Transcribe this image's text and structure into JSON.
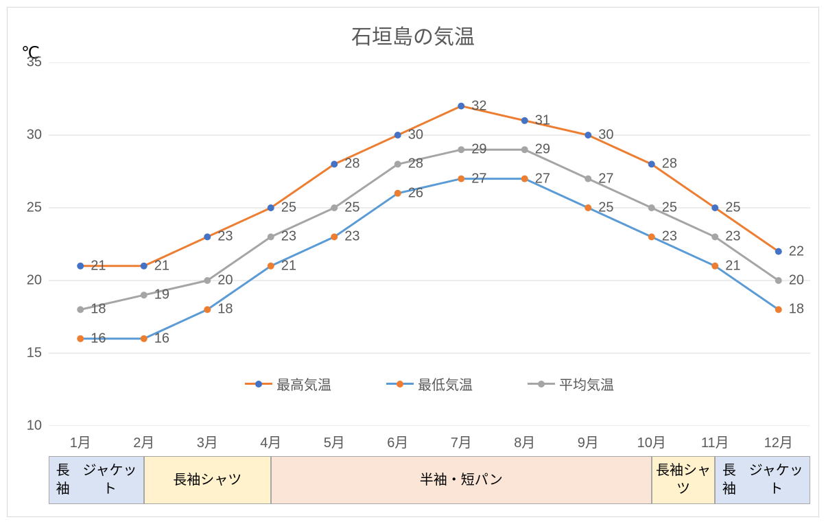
{
  "chart": {
    "title": "石垣島の気温",
    "unit_label": "℃",
    "type": "line",
    "background_color": "#ffffff",
    "grid_color": "#d9d9d9",
    "axis_color": "#d9d9d9",
    "text_color": "#595959",
    "title_fontsize": 30,
    "label_fontsize": 20,
    "yaxis": {
      "min": 10,
      "max": 35,
      "step": 5,
      "ticks": [
        10,
        15,
        20,
        25,
        30,
        35
      ]
    },
    "categories": [
      "1月",
      "2月",
      "3月",
      "4月",
      "5月",
      "6月",
      "7月",
      "8月",
      "9月",
      "10月",
      "11月",
      "12月"
    ],
    "series": [
      {
        "name": "最高気温",
        "line_color": "#ed7d31",
        "marker_color": "#4472c4",
        "marker_style": "circle",
        "marker_size": 10,
        "line_width": 3,
        "values": [
          21,
          21,
          23,
          25,
          28,
          30,
          32,
          31,
          30,
          28,
          25,
          22
        ]
      },
      {
        "name": "最低気温",
        "line_color": "#5b9bd5",
        "marker_color": "#ed7d31",
        "marker_style": "circle",
        "marker_size": 10,
        "line_width": 3,
        "values": [
          16,
          16,
          18,
          21,
          23,
          26,
          27,
          27,
          25,
          23,
          21,
          18
        ]
      },
      {
        "name": "平均気温",
        "line_color": "#a5a5a5",
        "marker_color": "#a5a5a5",
        "marker_style": "circle",
        "marker_size": 10,
        "line_width": 3,
        "values": [
          18,
          19,
          20,
          23,
          25,
          28,
          29,
          29,
          27,
          25,
          23,
          20
        ]
      }
    ],
    "legend": {
      "position": "inside-bottom",
      "y_value": 13,
      "items": [
        "最高気温",
        "最低気温",
        "平均気温"
      ]
    },
    "clothing_bands": [
      {
        "label": "長袖\nジャケット",
        "start_month": 1,
        "end_month": 2,
        "bg_color": "#dae3f3",
        "border_color": "#a6a6a6"
      },
      {
        "label": "長袖シャツ",
        "start_month": 2,
        "end_month": 4,
        "bg_color": "#fff2cc",
        "border_color": "#a6a6a6"
      },
      {
        "label": "半袖・短パン",
        "start_month": 4,
        "end_month": 10,
        "bg_color": "#fbe5d6",
        "border_color": "#a6a6a6"
      },
      {
        "label": "長袖シャツ",
        "start_month": 10,
        "end_month": 11,
        "bg_color": "#fff2cc",
        "border_color": "#a6a6a6"
      },
      {
        "label": "長袖\nジャケット",
        "start_month": 11,
        "end_month": 12,
        "bg_color": "#dae3f3",
        "border_color": "#a6a6a6"
      }
    ]
  }
}
